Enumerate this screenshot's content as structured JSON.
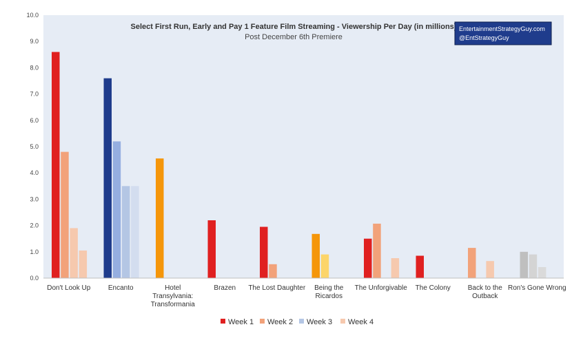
{
  "chart_data": {
    "type": "bar",
    "title": "Select First Run, Early and Pay 1 Feature Film Streaming - Viewership Per Day (in millions)",
    "subtitle": "Post December 6th Premiere",
    "brand": [
      "EntertainmentStrategyGuy.com",
      "@EntStrategyGuy"
    ],
    "ylim": [
      0,
      10
    ],
    "yticks": [
      "0.0",
      "1.0",
      "2.0",
      "3.0",
      "4.0",
      "5.0",
      "6.0",
      "7.0",
      "8.0",
      "9.0",
      "10.0"
    ],
    "grid": false,
    "legend_position": "bottom",
    "legend": [
      "Week 1",
      "Week 2",
      "Week 3",
      "Week 4"
    ],
    "legend_colors": [
      "#e02020",
      "#f2a27a",
      "#b4c6e4",
      "#f6c9ae"
    ],
    "categories": [
      [
        "Don't Look Up"
      ],
      [
        "Encanto"
      ],
      [
        "Hotel",
        "Transylvania:",
        "Transformania"
      ],
      [
        "Brazen"
      ],
      [
        "The Lost Daughter"
      ],
      [
        "Being the",
        "Ricardos"
      ],
      [
        "The Unforgivable"
      ],
      [
        "The Colony"
      ],
      [
        "Back to the",
        "Outback"
      ],
      [
        "Ron's Gone Wrong"
      ]
    ],
    "series": [
      {
        "name": "Week 1",
        "values": [
          8.6,
          7.6,
          4.55,
          2.2,
          1.95,
          1.68,
          1.5,
          0.85,
          0,
          1.0
        ]
      },
      {
        "name": "Week 2",
        "values": [
          4.8,
          5.2,
          0,
          0,
          0.53,
          0.9,
          2.07,
          0,
          1.15,
          0.9
        ]
      },
      {
        "name": "Week 3",
        "values": [
          1.9,
          3.5,
          0,
          0,
          0,
          0,
          0,
          0,
          0,
          0.42
        ]
      },
      {
        "name": "Week 4",
        "values": [
          1.05,
          3.5,
          0,
          0,
          0,
          0,
          0.76,
          0,
          0.65,
          0
        ]
      }
    ],
    "bar_colors": [
      [
        "#e02020",
        "#f2a27a",
        "#f6c9ae",
        "#f6c9ae"
      ],
      [
        "#1f3c8c",
        "#95aee0",
        "#b4c6e4",
        "#d3ddef"
      ],
      [
        "#f5960a",
        "#f5960a",
        "#f5960a",
        "#f5960a"
      ],
      [
        "#e02020",
        "#e02020",
        "#e02020",
        "#e02020"
      ],
      [
        "#e02020",
        "#f2a27a",
        "#f2a27a",
        "#f2a27a"
      ],
      [
        "#f5960a",
        "#fcd56a",
        "#fcd56a",
        "#fcd56a"
      ],
      [
        "#e02020",
        "#f2a27a",
        "#f6c9ae",
        "#f6c9ae"
      ],
      [
        "#e02020",
        "#e02020",
        "#e02020",
        "#e02020"
      ],
      [
        "#f2a27a",
        "#f2a27a",
        "#f2a27a",
        "#f6c9ae"
      ],
      [
        "#bfbfbf",
        "#d4d4d4",
        "#dadada",
        "#dadada"
      ]
    ],
    "bar_slots": [
      [
        0,
        1,
        2,
        3
      ],
      [
        0,
        1,
        2,
        3
      ],
      [
        0,
        1,
        2,
        3
      ],
      [
        0,
        1,
        2,
        3
      ],
      [
        0,
        1,
        2,
        3
      ],
      [
        0,
        1,
        2,
        3
      ],
      [
        0,
        1,
        2,
        3
      ],
      [
        0,
        1,
        2,
        3
      ],
      [
        0,
        0,
        1,
        2
      ],
      [
        0,
        1,
        2,
        3
      ]
    ],
    "plot_background": "#e6ecf5",
    "brand_background": "#1f3c8c"
  }
}
